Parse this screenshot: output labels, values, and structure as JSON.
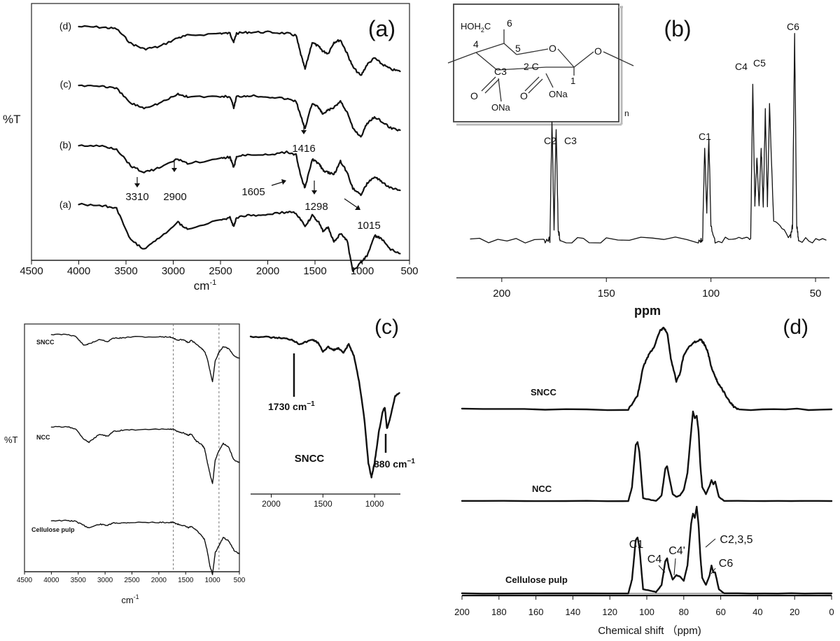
{
  "figure": {
    "panels": {
      "a": {
        "label": "(a)",
        "ylabel": "%T",
        "xlabel": "cm",
        "xlabel_sup": "-1",
        "x_ticks": [
          "4500",
          "4000",
          "3500",
          "3000",
          "2500",
          "2000",
          "1500",
          "1000",
          "500"
        ],
        "series_labels": [
          "(d)",
          "(c)",
          "(b)",
          "(a)"
        ],
        "peak_labels": [
          "3310",
          "2900",
          "1605",
          "1416",
          "1298",
          "1015"
        ]
      },
      "b": {
        "label": "(b)",
        "xlabel": "ppm",
        "x_ticks": [
          "200",
          "150",
          "100",
          "50"
        ],
        "peak_labels": [
          "C2",
          "C3",
          "C1",
          "C4",
          "C5",
          "C6"
        ],
        "structure": {
          "hoh2c": "HOH",
          "hoh2c_sub": "2",
          "hoh2c_c": "C",
          "n6": "6",
          "n4": "4",
          "n5": "5",
          "o_ring": "O",
          "o_link": "O",
          "c3": "C3",
          "c2": "2 C",
          "c1": "1",
          "o_left": "O",
          "o_right": "O",
          "ona_left": "ONa",
          "ona_right": "ONa",
          "n_repeat": "n"
        }
      },
      "c": {
        "label": "(c)",
        "ylabel": "%T",
        "xlabel": "cm",
        "xlabel_sup": "-1",
        "x_ticks": [
          "4500",
          "4000",
          "3500",
          "3000",
          "2500",
          "2000",
          "1500",
          "1000",
          "500"
        ],
        "series_labels": [
          "SNCC",
          "NCC",
          "Cellulose pulp"
        ],
        "inset": {
          "sample_label": "SNCC",
          "annotation_1730": "1730 cm",
          "annotation_880": "880 cm",
          "sup": "−1",
          "x_ticks": [
            "2000",
            "1500",
            "1000"
          ]
        }
      },
      "d": {
        "label": "(d)",
        "xlabel": "Chemical shift （ppm)",
        "x_ticks": [
          "200",
          "180",
          "160",
          "140",
          "120",
          "100",
          "80",
          "60",
          "40",
          "20",
          "0"
        ],
        "series_labels": [
          "SNCC",
          "NCC",
          "Cellulose pulp"
        ],
        "peak_labels": [
          "C1",
          "C4",
          "C4'",
          "C2,3,5",
          "C6"
        ]
      }
    }
  },
  "chart_data": [
    {
      "panel": "(a)",
      "type": "line",
      "title": "",
      "xlabel": "cm-1",
      "ylabel": "%T",
      "xlim": [
        4500,
        500
      ],
      "x_reversed": true,
      "series_order_top_to_bottom": [
        "(d)",
        "(c)",
        "(b)",
        "(a)"
      ],
      "series": [
        {
          "name": "(d)",
          "x": [
            4000,
            3750,
            3600,
            3450,
            3310,
            3150,
            2950,
            2850,
            2500,
            2400,
            2360,
            2330,
            2200,
            2000,
            1800,
            1700,
            1650,
            1605,
            1530,
            1460,
            1416,
            1360,
            1300,
            1230,
            1160,
            1100,
            1015,
            950,
            870,
            800,
            700,
            600
          ],
          "y": [
            0,
            0.6,
            2,
            15,
            20,
            18,
            10,
            8,
            6,
            6,
            14,
            6,
            5,
            5,
            6,
            8,
            25,
            38,
            14,
            18,
            22,
            24,
            14,
            12,
            24,
            36,
            44,
            34,
            28,
            33,
            38,
            40
          ]
        },
        {
          "name": "(c)",
          "x": [
            4000,
            3750,
            3600,
            3450,
            3310,
            3150,
            2950,
            2850,
            2500,
            2400,
            2360,
            2330,
            2200,
            2000,
            1800,
            1700,
            1650,
            1605,
            1530,
            1460,
            1416,
            1360,
            1300,
            1230,
            1160,
            1100,
            1015,
            950,
            870,
            800,
            700,
            600
          ],
          "y": [
            0,
            0.6,
            3,
            16,
            20,
            16,
            8,
            10,
            10,
            10,
            20,
            10,
            9,
            10,
            12,
            14,
            28,
            38,
            16,
            20,
            26,
            22,
            20,
            14,
            24,
            38,
            46,
            34,
            28,
            32,
            38,
            40
          ]
        },
        {
          "name": "(b)",
          "x": [
            4000,
            3750,
            3600,
            3450,
            3310,
            3150,
            2950,
            2850,
            2500,
            2400,
            2360,
            2330,
            2200,
            2000,
            1800,
            1700,
            1650,
            1605,
            1530,
            1460,
            1416,
            1360,
            1300,
            1230,
            1160,
            1100,
            1015,
            950,
            870,
            800,
            700,
            600
          ],
          "y": [
            0,
            0.6,
            3,
            18,
            24,
            20,
            12,
            16,
            12,
            10,
            20,
            10,
            8,
            8,
            6,
            8,
            28,
            38,
            12,
            16,
            22,
            24,
            26,
            14,
            24,
            38,
            44,
            34,
            28,
            32,
            38,
            40
          ]
        },
        {
          "name": "(a)",
          "x": [
            4000,
            3750,
            3600,
            3450,
            3310,
            3150,
            2950,
            2850,
            2500,
            2400,
            2360,
            2330,
            2200,
            2000,
            1800,
            1700,
            1650,
            1605,
            1530,
            1460,
            1416,
            1360,
            1300,
            1230,
            1160,
            1100,
            1015,
            950,
            870,
            800,
            700,
            600
          ],
          "y": [
            0,
            1,
            4,
            32,
            40,
            30,
            16,
            22,
            14,
            12,
            20,
            12,
            10,
            9,
            7,
            8,
            14,
            20,
            10,
            16,
            24,
            20,
            34,
            26,
            32,
            60,
            52,
            46,
            28,
            30,
            40,
            44
          ]
        }
      ],
      "annotations": [
        {
          "text": "3310",
          "x": 3310
        },
        {
          "text": "2900",
          "x": 2900
        },
        {
          "text": "1605",
          "x": 1605
        },
        {
          "text": "1416",
          "x": 1416
        },
        {
          "text": "1298",
          "x": 1298
        },
        {
          "text": "1015",
          "x": 1015
        }
      ]
    },
    {
      "panel": "(b)",
      "type": "line",
      "title": "",
      "xlabel": "ppm",
      "ylabel": "",
      "xlim": [
        215,
        45
      ],
      "x_reversed": true,
      "series": [
        {
          "name": "NMR spectrum",
          "x": [
            215,
            180,
            177,
            176,
            175,
            174,
            173,
            172,
            150,
            106,
            104,
            103,
            102,
            101,
            100,
            98,
            85,
            81,
            80,
            79,
            78,
            77,
            76,
            75,
            74,
            73,
            72,
            70,
            62,
            61,
            60,
            59,
            58,
            45
          ],
          "y": [
            0,
            0,
            0,
            70,
            5,
            66,
            5,
            0,
            0,
            0,
            0,
            55,
            15,
            60,
            8,
            0,
            0,
            0,
            90,
            20,
            48,
            20,
            55,
            20,
            75,
            20,
            78,
            10,
            2,
            8,
            120,
            8,
            0,
            0
          ]
        }
      ],
      "annotations": [
        {
          "text": "C2",
          "x": 176.5
        },
        {
          "text": "C3",
          "x": 174
        },
        {
          "text": "C1",
          "x": 102
        },
        {
          "text": "C4",
          "x": 80
        },
        {
          "text": "C5",
          "x": 74
        },
        {
          "text": "C6",
          "x": 60
        }
      ]
    },
    {
      "panel": "(c)",
      "type": "line",
      "title": "",
      "xlabel": "cm-1",
      "ylabel": "%T",
      "xlim": [
        4500,
        500
      ],
      "x_reversed": true,
      "series_order_top_to_bottom": [
        "SNCC",
        "NCC",
        "Cellulose pulp"
      ],
      "series": [
        {
          "name": "SNCC",
          "x": [
            4000,
            3700,
            3550,
            3400,
            3300,
            3100,
            2950,
            2850,
            2700,
            2500,
            2000,
            1800,
            1730,
            1650,
            1550,
            1450,
            1400,
            1300,
            1200,
            1150,
            1100,
            1050,
            1000,
            950,
            880,
            800,
            700,
            600,
            500
          ],
          "y": [
            0,
            0,
            3,
            18,
            16,
            8,
            12,
            6,
            6,
            4,
            4,
            4,
            6,
            10,
            8,
            14,
            10,
            16,
            24,
            28,
            40,
            60,
            80,
            44,
            30,
            20,
            24,
            36,
            40
          ]
        },
        {
          "name": "NCC",
          "x": [
            4000,
            3700,
            3550,
            3400,
            3300,
            3100,
            2950,
            2850,
            2700,
            2500,
            2000,
            1800,
            1730,
            1650,
            1550,
            1450,
            1400,
            1300,
            1200,
            1150,
            1100,
            1050,
            1000,
            950,
            880,
            800,
            700,
            600,
            500
          ],
          "y": [
            0,
            0,
            3,
            20,
            26,
            12,
            16,
            8,
            6,
            5,
            4,
            4,
            4,
            8,
            10,
            14,
            12,
            24,
            30,
            36,
            58,
            78,
            96,
            56,
            40,
            28,
            34,
            56,
            60
          ]
        },
        {
          "name": "Cellulose pulp",
          "x": [
            4000,
            3700,
            3550,
            3400,
            3300,
            3100,
            2950,
            2850,
            2700,
            2500,
            2000,
            1800,
            1730,
            1650,
            1550,
            1450,
            1400,
            1300,
            1200,
            1150,
            1100,
            1050,
            1000,
            950,
            880,
            800,
            700,
            600,
            500
          ],
          "y": [
            0,
            0,
            1,
            8,
            12,
            6,
            8,
            4,
            4,
            3,
            3,
            3,
            3,
            6,
            8,
            12,
            10,
            16,
            26,
            32,
            50,
            76,
            90,
            54,
            42,
            28,
            34,
            50,
            56
          ]
        }
      ],
      "annotations": [
        {
          "text": "reference line",
          "x": 1730
        },
        {
          "text": "reference line",
          "x": 880
        }
      ],
      "inset": {
        "type": "line",
        "xlim": [
          2200,
          750
        ],
        "x_reversed": true,
        "series": [
          {
            "name": "SNCC",
            "x": [
              2200,
              2000,
              1900,
              1800,
              1730,
              1680,
              1600,
              1550,
              1500,
              1450,
              1400,
              1350,
              1300,
              1250,
              1200,
              1150,
              1100,
              1060,
              1030,
              1000,
              960,
              920,
              900,
              880,
              850,
              800,
              760
            ],
            "y": [
              0,
              1,
              2,
              4,
              10,
              8,
              4,
              8,
              20,
              14,
              18,
              16,
              22,
              10,
              26,
              60,
              110,
              170,
              190,
              170,
              130,
              100,
              96,
              124,
              110,
              80,
              76
            ]
          }
        ],
        "annotations": [
          {
            "text": "1730 cm-1",
            "x": 1730
          },
          {
            "text": "880 cm-1",
            "x": 880
          }
        ]
      }
    },
    {
      "panel": "(d)",
      "type": "line",
      "title": "",
      "xlabel": "Chemical shift (ppm)",
      "ylabel": "",
      "xlim": [
        200,
        0
      ],
      "x_reversed": true,
      "series_order_top_to_bottom": [
        "SNCC",
        "NCC",
        "Cellulose pulp"
      ],
      "series": [
        {
          "name": "SNCC",
          "x": [
            200,
            110,
            105,
            102,
            99,
            96,
            93,
            91,
            89,
            87,
            84,
            82,
            80,
            77,
            74,
            71,
            69,
            67,
            65,
            63,
            61,
            59,
            56,
            53,
            50,
            0
          ],
          "y": [
            0,
            0,
            20,
            60,
            78,
            90,
            112,
            116,
            110,
            72,
            40,
            52,
            78,
            90,
            96,
            100,
            94,
            82,
            60,
            46,
            36,
            28,
            14,
            4,
            0,
            0
          ]
        },
        {
          "name": "NCC",
          "x": [
            200,
            110,
            108,
            106,
            105,
            104,
            102,
            95,
            92,
            90,
            89,
            88,
            86,
            84,
            82,
            80,
            78,
            76,
            75,
            74,
            73,
            72,
            71,
            70,
            68,
            66,
            65,
            64,
            63,
            61,
            58,
            0
          ],
          "y": [
            0,
            0,
            20,
            80,
            84,
            70,
            4,
            0,
            8,
            46,
            50,
            36,
            10,
            6,
            8,
            16,
            40,
            100,
            128,
            118,
            122,
            100,
            50,
            20,
            10,
            22,
            30,
            24,
            28,
            6,
            0,
            0
          ]
        },
        {
          "name": "Cellulose pulp",
          "x": [
            200,
            110,
            108,
            106,
            105,
            104,
            102,
            95,
            92,
            90,
            89,
            88,
            86,
            84,
            82,
            80,
            78,
            76,
            75,
            74,
            73,
            72,
            71,
            70,
            68,
            66,
            65,
            64,
            63,
            61,
            58,
            0
          ],
          "y": [
            0,
            0,
            20,
            76,
            80,
            66,
            6,
            2,
            12,
            46,
            50,
            36,
            20,
            26,
            24,
            18,
            40,
            100,
            114,
            108,
            124,
            98,
            52,
            22,
            12,
            26,
            40,
            30,
            30,
            6,
            0,
            0
          ]
        }
      ],
      "annotations": [
        {
          "text": "C1",
          "x": 105
        },
        {
          "text": "C4",
          "x": 89
        },
        {
          "text": "C4'",
          "x": 84
        },
        {
          "text": "C2,3,5",
          "x": 74
        },
        {
          "text": "C6",
          "x": 65
        }
      ]
    }
  ]
}
